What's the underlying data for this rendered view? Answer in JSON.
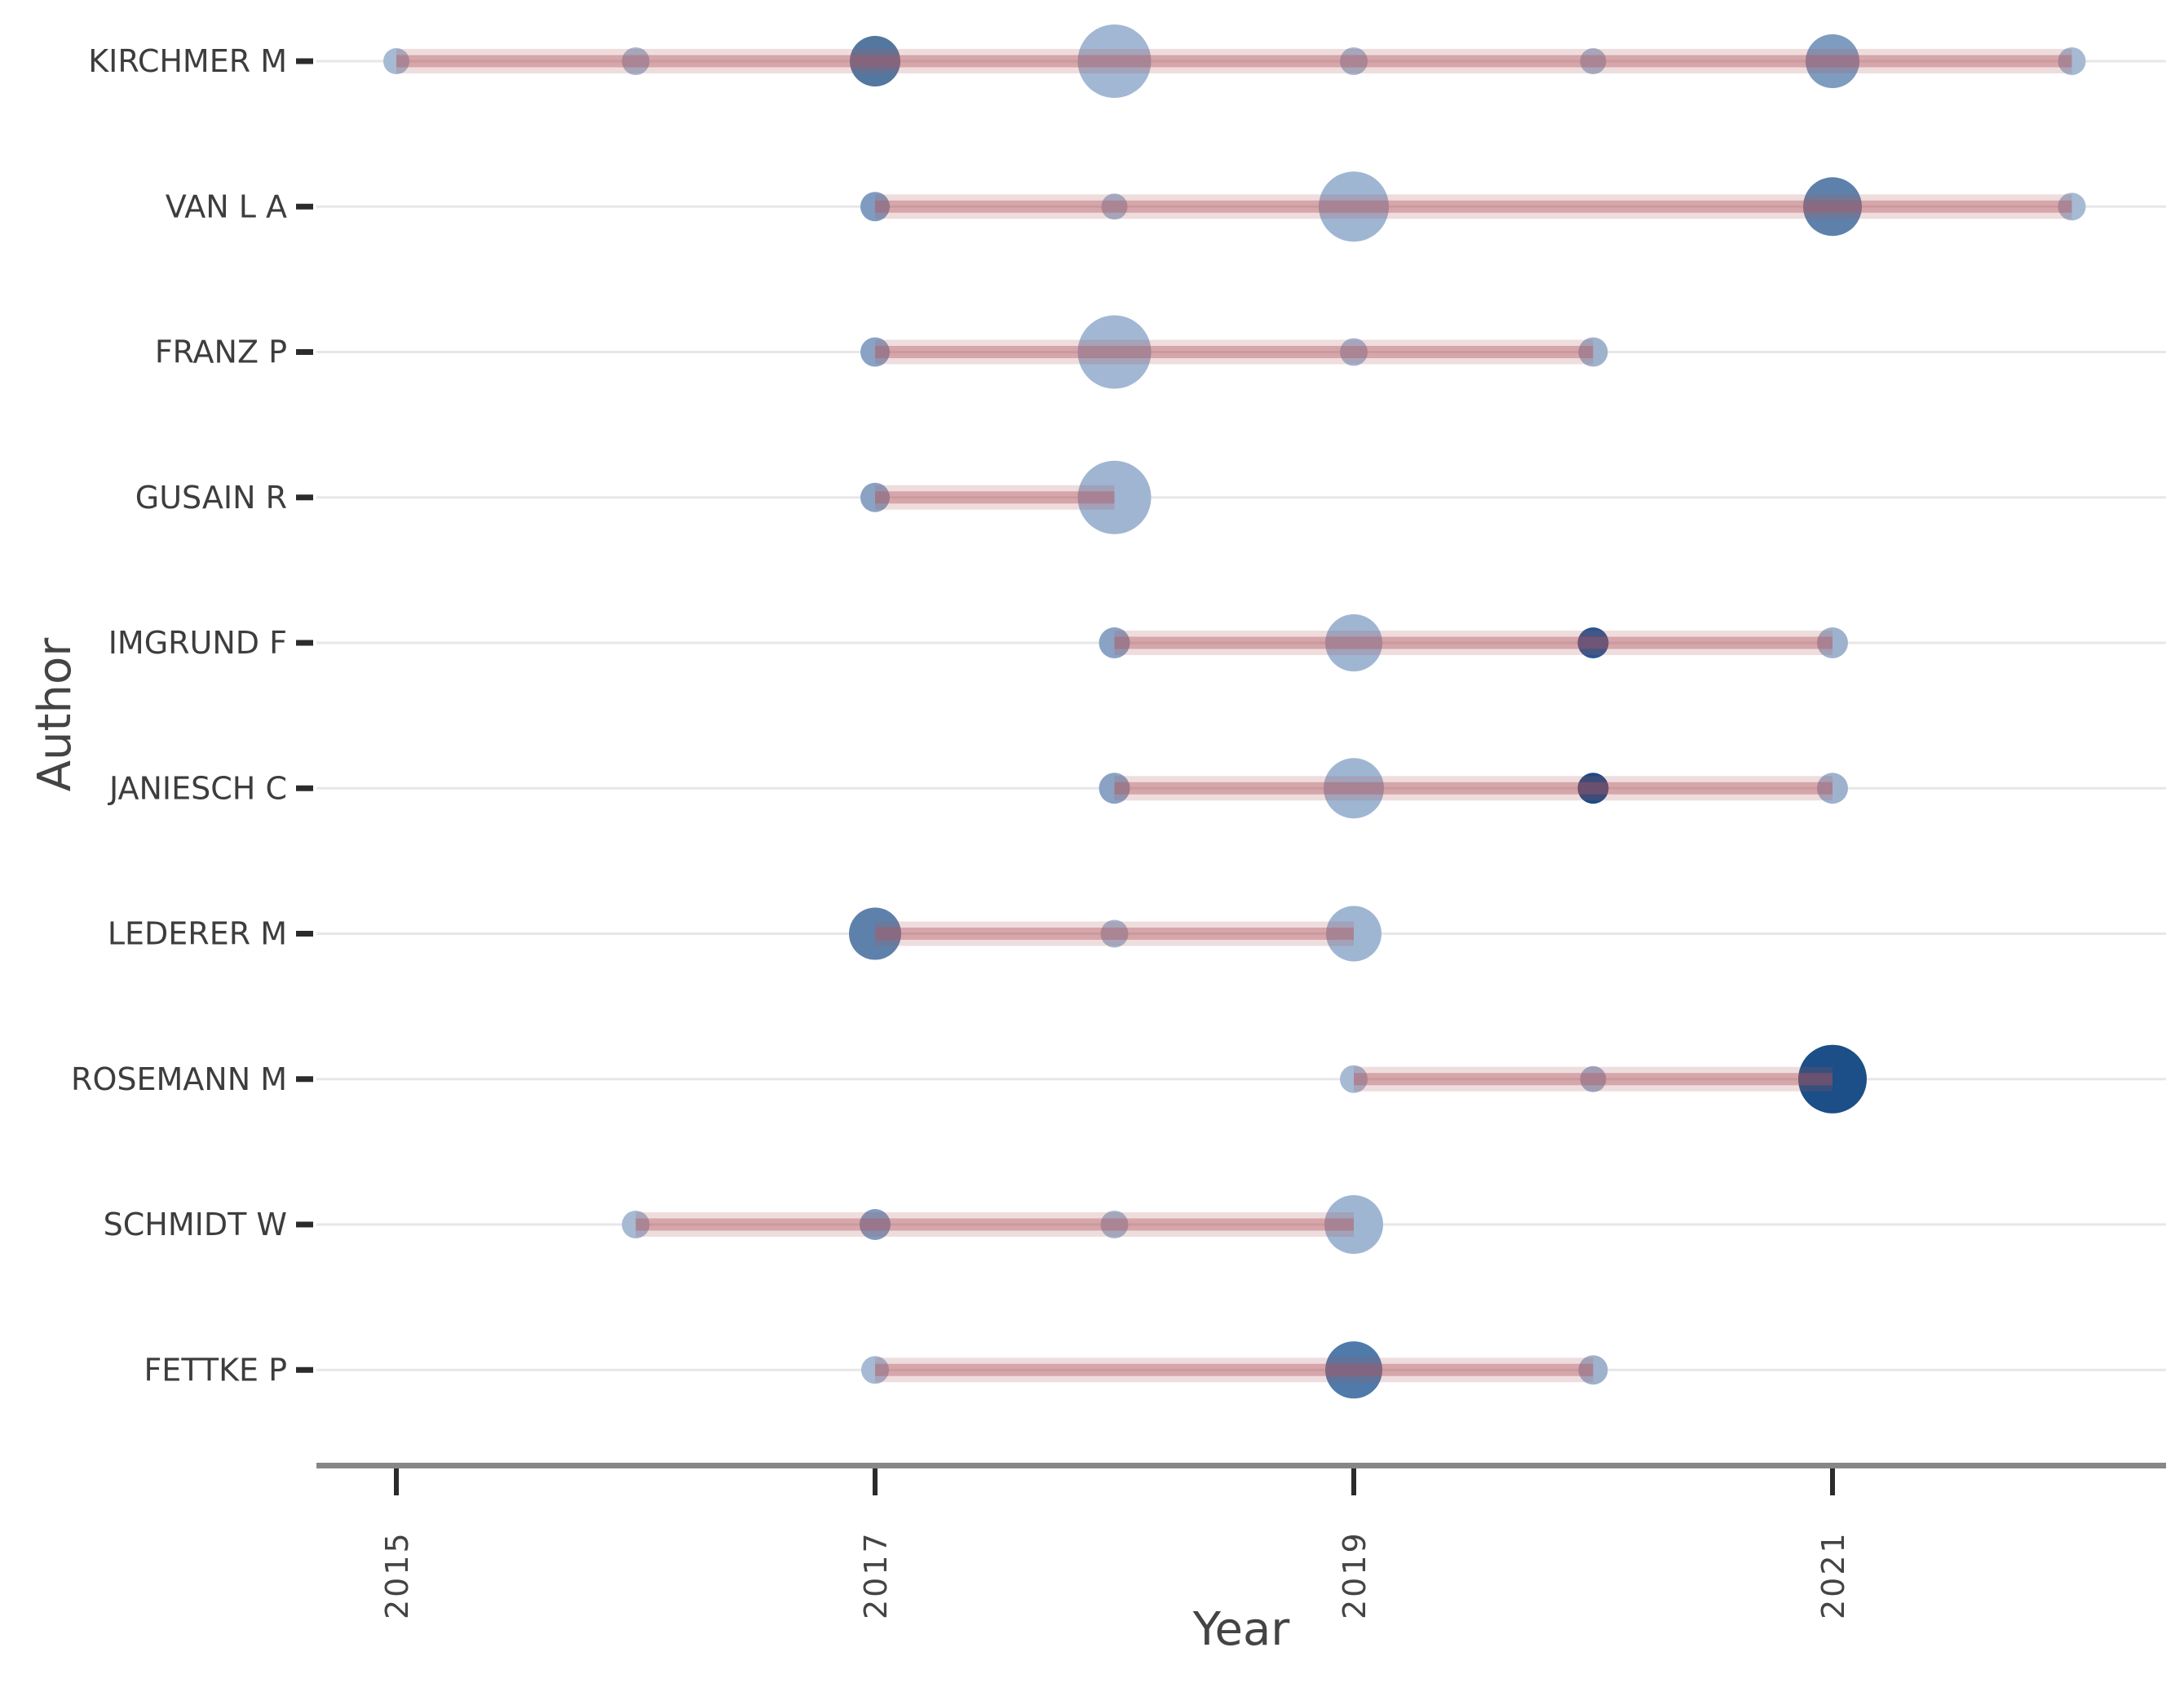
{
  "figure": {
    "background": "#ffffff",
    "gridline_color": "#e7e7e7",
    "axis_line_color": "#878787",
    "tick_mark_color": "#2b2b2b",
    "label_color": "#3d3d3d",
    "timeline": {
      "rgb": "177,86,92",
      "halo_opacity": 0.2,
      "core_opacity": 0.4
    }
  },
  "chart_data": {
    "type": "scatter",
    "title": "",
    "xlabel": "Year",
    "ylabel": "Author",
    "x_ticks": [
      2015,
      2017,
      2019,
      2021
    ],
    "x_range": [
      2014.65,
      2022.4
    ],
    "grid": "horizontal-rows",
    "legend": "none",
    "description": "Authors production over time: one row per author, bubble per publication year (bubble area = articles, darker fill = more citations), pink band spans first to last publication year.",
    "series": [
      {
        "name": "KIRCHMER M",
        "start_year": 2015,
        "end_year": 2022,
        "points": [
          {
            "year": 2015,
            "r": 16,
            "color": "#a6bad3"
          },
          {
            "year": 2016,
            "r": 17,
            "color": "#a6bad3"
          },
          {
            "year": 2017,
            "r": 31,
            "color": "#54779f"
          },
          {
            "year": 2018,
            "r": 45,
            "color": "#a2b7d3"
          },
          {
            "year": 2019,
            "r": 17,
            "color": "#a6bad3"
          },
          {
            "year": 2020,
            "r": 16,
            "color": "#a6bad3"
          },
          {
            "year": 2021,
            "r": 33,
            "color": "#7e9cc0"
          },
          {
            "year": 2022,
            "r": 17,
            "color": "#a6bad3"
          }
        ]
      },
      {
        "name": "VAN L A",
        "start_year": 2017,
        "end_year": 2022,
        "points": [
          {
            "year": 2017,
            "r": 18,
            "color": "#7f9bc0"
          },
          {
            "year": 2018,
            "r": 16,
            "color": "#a6bad3"
          },
          {
            "year": 2019,
            "r": 43,
            "color": "#9fb6d3"
          },
          {
            "year": 2021,
            "r": 36,
            "color": "#5e81ab"
          },
          {
            "year": 2022,
            "r": 17,
            "color": "#a6bad3"
          }
        ]
      },
      {
        "name": "FRANZ P",
        "start_year": 2017,
        "end_year": 2020,
        "points": [
          {
            "year": 2017,
            "r": 18,
            "color": "#8aa3c4"
          },
          {
            "year": 2018,
            "r": 45,
            "color": "#a2b7d3"
          },
          {
            "year": 2019,
            "r": 17,
            "color": "#a6bad3"
          },
          {
            "year": 2020,
            "r": 18,
            "color": "#9fb2cd"
          }
        ]
      },
      {
        "name": "GUSAIN R",
        "start_year": 2017,
        "end_year": 2018,
        "points": [
          {
            "year": 2017,
            "r": 18,
            "color": "#8aa3c4"
          },
          {
            "year": 2018,
            "r": 45,
            "color": "#9fb5d2"
          }
        ]
      },
      {
        "name": "IMGRUND F",
        "start_year": 2018,
        "end_year": 2021,
        "points": [
          {
            "year": 2018,
            "r": 19,
            "color": "#8aa3c4"
          },
          {
            "year": 2019,
            "r": 35,
            "color": "#9fb6d3"
          },
          {
            "year": 2020,
            "r": 19,
            "color": "#2a5591"
          },
          {
            "year": 2021,
            "r": 19,
            "color": "#9fb2cd"
          }
        ]
      },
      {
        "name": "JANIESCH C",
        "start_year": 2018,
        "end_year": 2021,
        "points": [
          {
            "year": 2018,
            "r": 19,
            "color": "#8aa3c4"
          },
          {
            "year": 2019,
            "r": 37,
            "color": "#9fb6d3"
          },
          {
            "year": 2020,
            "r": 19,
            "color": "#1f4a82"
          },
          {
            "year": 2021,
            "r": 19,
            "color": "#9fb2cd"
          }
        ]
      },
      {
        "name": "LEDERER M",
        "start_year": 2017,
        "end_year": 2019,
        "points": [
          {
            "year": 2017,
            "r": 32,
            "color": "#5e81ab"
          },
          {
            "year": 2018,
            "r": 17,
            "color": "#a6bad3"
          },
          {
            "year": 2019,
            "r": 34,
            "color": "#9fb6d3"
          }
        ]
      },
      {
        "name": "ROSEMANN M",
        "start_year": 2019,
        "end_year": 2021,
        "points": [
          {
            "year": 2019,
            "r": 17,
            "color": "#a6bad3"
          },
          {
            "year": 2020,
            "r": 16,
            "color": "#9fb0c9"
          },
          {
            "year": 2021,
            "r": 42,
            "color": "#1c4e87"
          }
        ]
      },
      {
        "name": "SCHMIDT W",
        "start_year": 2016,
        "end_year": 2019,
        "points": [
          {
            "year": 2016,
            "r": 17,
            "color": "#a6bad3"
          },
          {
            "year": 2017,
            "r": 19,
            "color": "#7e9cc0"
          },
          {
            "year": 2018,
            "r": 17,
            "color": "#a6bad3"
          },
          {
            "year": 2019,
            "r": 36,
            "color": "#9fb6d3"
          }
        ]
      },
      {
        "name": "FETTKE P",
        "start_year": 2017,
        "end_year": 2020,
        "points": [
          {
            "year": 2017,
            "r": 17,
            "color": "#a6bad3"
          },
          {
            "year": 2019,
            "r": 35,
            "color": "#4f7aa9"
          },
          {
            "year": 2020,
            "r": 18,
            "color": "#9fb2cd"
          }
        ]
      }
    ]
  }
}
